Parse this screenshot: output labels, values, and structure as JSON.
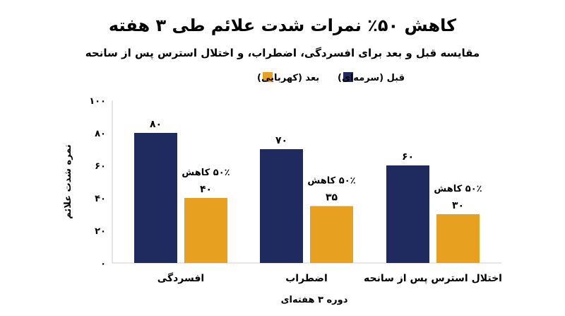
{
  "chart_data": {
    "type": "bar",
    "title": "کاهش ۵۰٪ نمرات شدت علائم طی ۳ هفته",
    "subtitle": "مقایسه قبل و بعد برای افسردگی، اضطراب، و اختلال استرس پس از سانحه",
    "xlabel": "دوره ۳ هفته‌ای",
    "ylabel": "نمره شدت علائم",
    "ylim": [
      0,
      100
    ],
    "yticks": [
      0,
      20,
      40,
      60,
      80,
      100
    ],
    "ytick_labels": [
      "۰",
      "۲۰",
      "۴۰",
      "۶۰",
      "۸۰",
      "۱۰۰"
    ],
    "categories": [
      "افسردگی",
      "اضطراب",
      "اختلال استرس پس از سانحه"
    ],
    "series": [
      {
        "name": "قبل (سرمه‌ای)",
        "color": "#1f2a5e",
        "values": [
          80,
          70,
          60
        ],
        "labels": [
          "۸۰",
          "۷۰",
          "۶۰"
        ]
      },
      {
        "name": "بعد (کهربایی)",
        "color": "#e8a020",
        "values": [
          40,
          35,
          30
        ],
        "labels": [
          "۴۰",
          "۳۵",
          "۳۰"
        ]
      }
    ],
    "annotations": [
      "۵۰٪ کاهش",
      "۵۰٪ کاهش",
      "۵۰٪ کاهش"
    ],
    "legend_position": "top",
    "grid": false
  }
}
